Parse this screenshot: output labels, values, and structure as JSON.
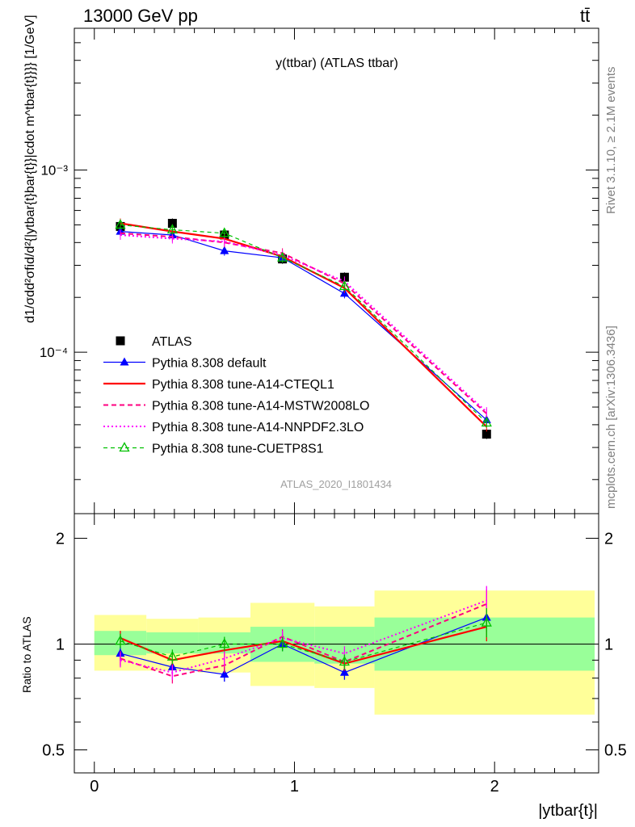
{
  "header": {
    "left": "13000 GeV pp",
    "right": "tt̄"
  },
  "side_labels": {
    "rivet": "Rivet 3.1.10, ≥ 2.1M events",
    "mcplots": "mcplots.cern.ch [arXiv:1306.3436]"
  },
  "chart_data": [
    {
      "type": "line",
      "panel": "main",
      "title": "y(ttbar) (ATLAS ttbar)",
      "ylabel": "d1/σdd²σfid/d²{|ytbar{t}bar{t}}|cdot m^tbar{t}}}} [1/GeV]",
      "yscale": "log",
      "xlim": [
        -0.1,
        2.52
      ],
      "ylim": [
        1.3e-05,
        0.006
      ],
      "y_ticks": [
        {
          "value": 0.001,
          "label": "10⁻³"
        },
        {
          "value": 0.0001,
          "label": "10⁻⁴"
        }
      ],
      "watermark": "ATLAS_2020_I1801434",
      "legend_position": "bottom-left",
      "legend": [
        "ATLAS",
        "Pythia 8.308 default",
        "Pythia 8.308 tune-A14-CTEQL1",
        "Pythia 8.308 tune-A14-MSTW2008LO",
        "Pythia 8.308 tune-A14-NNPDF2.3LO",
        "Pythia 8.308 tune-CUETP8S1"
      ],
      "x": [
        0.13,
        0.39,
        0.65,
        0.94,
        1.25,
        1.96
      ],
      "series": [
        {
          "name": "ATLAS",
          "color": "#000000",
          "style": "square",
          "values": [
            0.00049,
            0.00051,
            0.00044,
            0.000325,
            0.000258,
            3.55e-05
          ]
        },
        {
          "name": "Pythia 8.308 default",
          "color": "#0000ff",
          "style": "solid-triangle",
          "values": [
            0.00046,
            0.00044,
            0.00036,
            0.00033,
            0.00021,
            4.25e-05
          ]
        },
        {
          "name": "Pythia 8.308 tune-A14-CTEQL1",
          "color": "#ff0000",
          "style": "solid-thick",
          "values": [
            0.00051,
            0.00046,
            0.00042,
            0.000335,
            0.000225,
            3.9e-05
          ]
        },
        {
          "name": "Pythia 8.308 tune-A14-MSTW2008LO",
          "color": "#ff0080",
          "style": "dashed",
          "values": [
            0.00045,
            0.00043,
            0.0004,
            0.00035,
            0.000238,
            4.6e-05
          ]
        },
        {
          "name": "Pythia 8.308 tune-A14-NNPDF2.3LO",
          "color": "#ff00ff",
          "style": "dotted",
          "values": [
            0.00044,
            0.00042,
            0.000405,
            0.00034,
            0.000245,
            4.7e-05
          ]
        },
        {
          "name": "Pythia 8.308 tune-CUETP8S1",
          "color": "#00c000",
          "style": "dashed-open-triangle",
          "values": [
            0.0005,
            0.00047,
            0.00045,
            0.00033,
            0.00023,
            4.1e-05
          ]
        }
      ]
    },
    {
      "type": "line",
      "panel": "ratio",
      "ylabel": "Ratio to ATLAS",
      "yscale": "log",
      "xlabel": "|ytbar{t}|",
      "xlim": [
        -0.1,
        2.52
      ],
      "ylim": [
        0.43,
        2.35
      ],
      "x_ticks": [
        {
          "value": 0,
          "label": "0"
        },
        {
          "value": 1,
          "label": "1"
        },
        {
          "value": 2,
          "label": "2"
        }
      ],
      "y_ticks": [
        {
          "value": 0.5,
          "label": "0.5"
        },
        {
          "value": 1,
          "label": "1"
        },
        {
          "value": 2,
          "label": "2"
        }
      ],
      "bins": [
        0.0,
        0.26,
        0.52,
        0.78,
        1.1,
        1.4,
        2.5
      ],
      "band_inner": [
        [
          0.93,
          1.09
        ],
        [
          0.94,
          1.08
        ],
        [
          0.94,
          1.08
        ],
        [
          0.89,
          1.12
        ],
        [
          0.88,
          1.12
        ],
        [
          0.84,
          1.19
        ]
      ],
      "band_outer": [
        [
          0.84,
          1.21
        ],
        [
          0.84,
          1.18
        ],
        [
          0.83,
          1.19
        ],
        [
          0.76,
          1.31
        ],
        [
          0.75,
          1.28
        ],
        [
          0.63,
          1.42
        ]
      ],
      "x": [
        0.13,
        0.39,
        0.65,
        0.94,
        1.25,
        1.96
      ],
      "series": [
        {
          "name": "Pythia 8.308 default",
          "color": "#0000ff",
          "style": "solid-triangle",
          "values": [
            0.94,
            0.86,
            0.82,
            1.0,
            0.83,
            1.19
          ]
        },
        {
          "name": "Pythia 8.308 tune-A14-CTEQL1",
          "color": "#ff0000",
          "style": "solid-thick",
          "values": [
            1.04,
            0.9,
            0.96,
            1.02,
            0.88,
            1.12
          ]
        },
        {
          "name": "Pythia 8.308 tune-A14-MSTW2008LO",
          "color": "#ff0080",
          "style": "dashed",
          "values": [
            0.91,
            0.81,
            0.87,
            1.05,
            0.89,
            1.3
          ]
        },
        {
          "name": "Pythia 8.308 tune-A14-NNPDF2.3LO",
          "color": "#ff00ff",
          "style": "dotted",
          "values": [
            0.9,
            0.83,
            0.91,
            1.04,
            0.94,
            1.33
          ]
        },
        {
          "name": "Pythia 8.308 tune-CUETP8S1",
          "color": "#00c000",
          "style": "dashed-open-triangle",
          "values": [
            1.02,
            0.92,
            1.0,
            1.0,
            0.89,
            1.15
          ]
        }
      ]
    }
  ]
}
